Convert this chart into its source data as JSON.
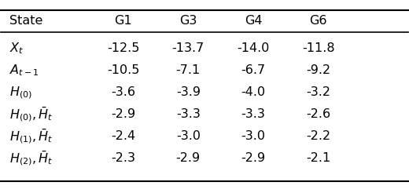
{
  "col_headers": [
    "State",
    "G1",
    "G3",
    "G4",
    "G6"
  ],
  "row_labels_latex": [
    "$X_t$",
    "$A_{t-1}$",
    "$H_{(0)}$",
    "$H_{(0)},\\bar{H}_t$",
    "$H_{(1)},\\bar{H}_t$",
    "$H_{(2)},\\bar{H}_t$"
  ],
  "values": [
    [
      -12.5,
      -13.7,
      -14.0,
      -11.8
    ],
    [
      -10.5,
      -7.1,
      -6.7,
      -9.2
    ],
    [
      -3.6,
      -3.9,
      -4.0,
      -3.2
    ],
    [
      -2.9,
      -3.3,
      -3.3,
      -2.6
    ],
    [
      -2.4,
      -3.0,
      -3.0,
      -2.2
    ],
    [
      -2.3,
      -2.9,
      -2.9,
      -2.1
    ]
  ],
  "background_color": "#ffffff",
  "text_color": "#000000",
  "fontsize": 11.5,
  "header_fontsize": 11.5
}
